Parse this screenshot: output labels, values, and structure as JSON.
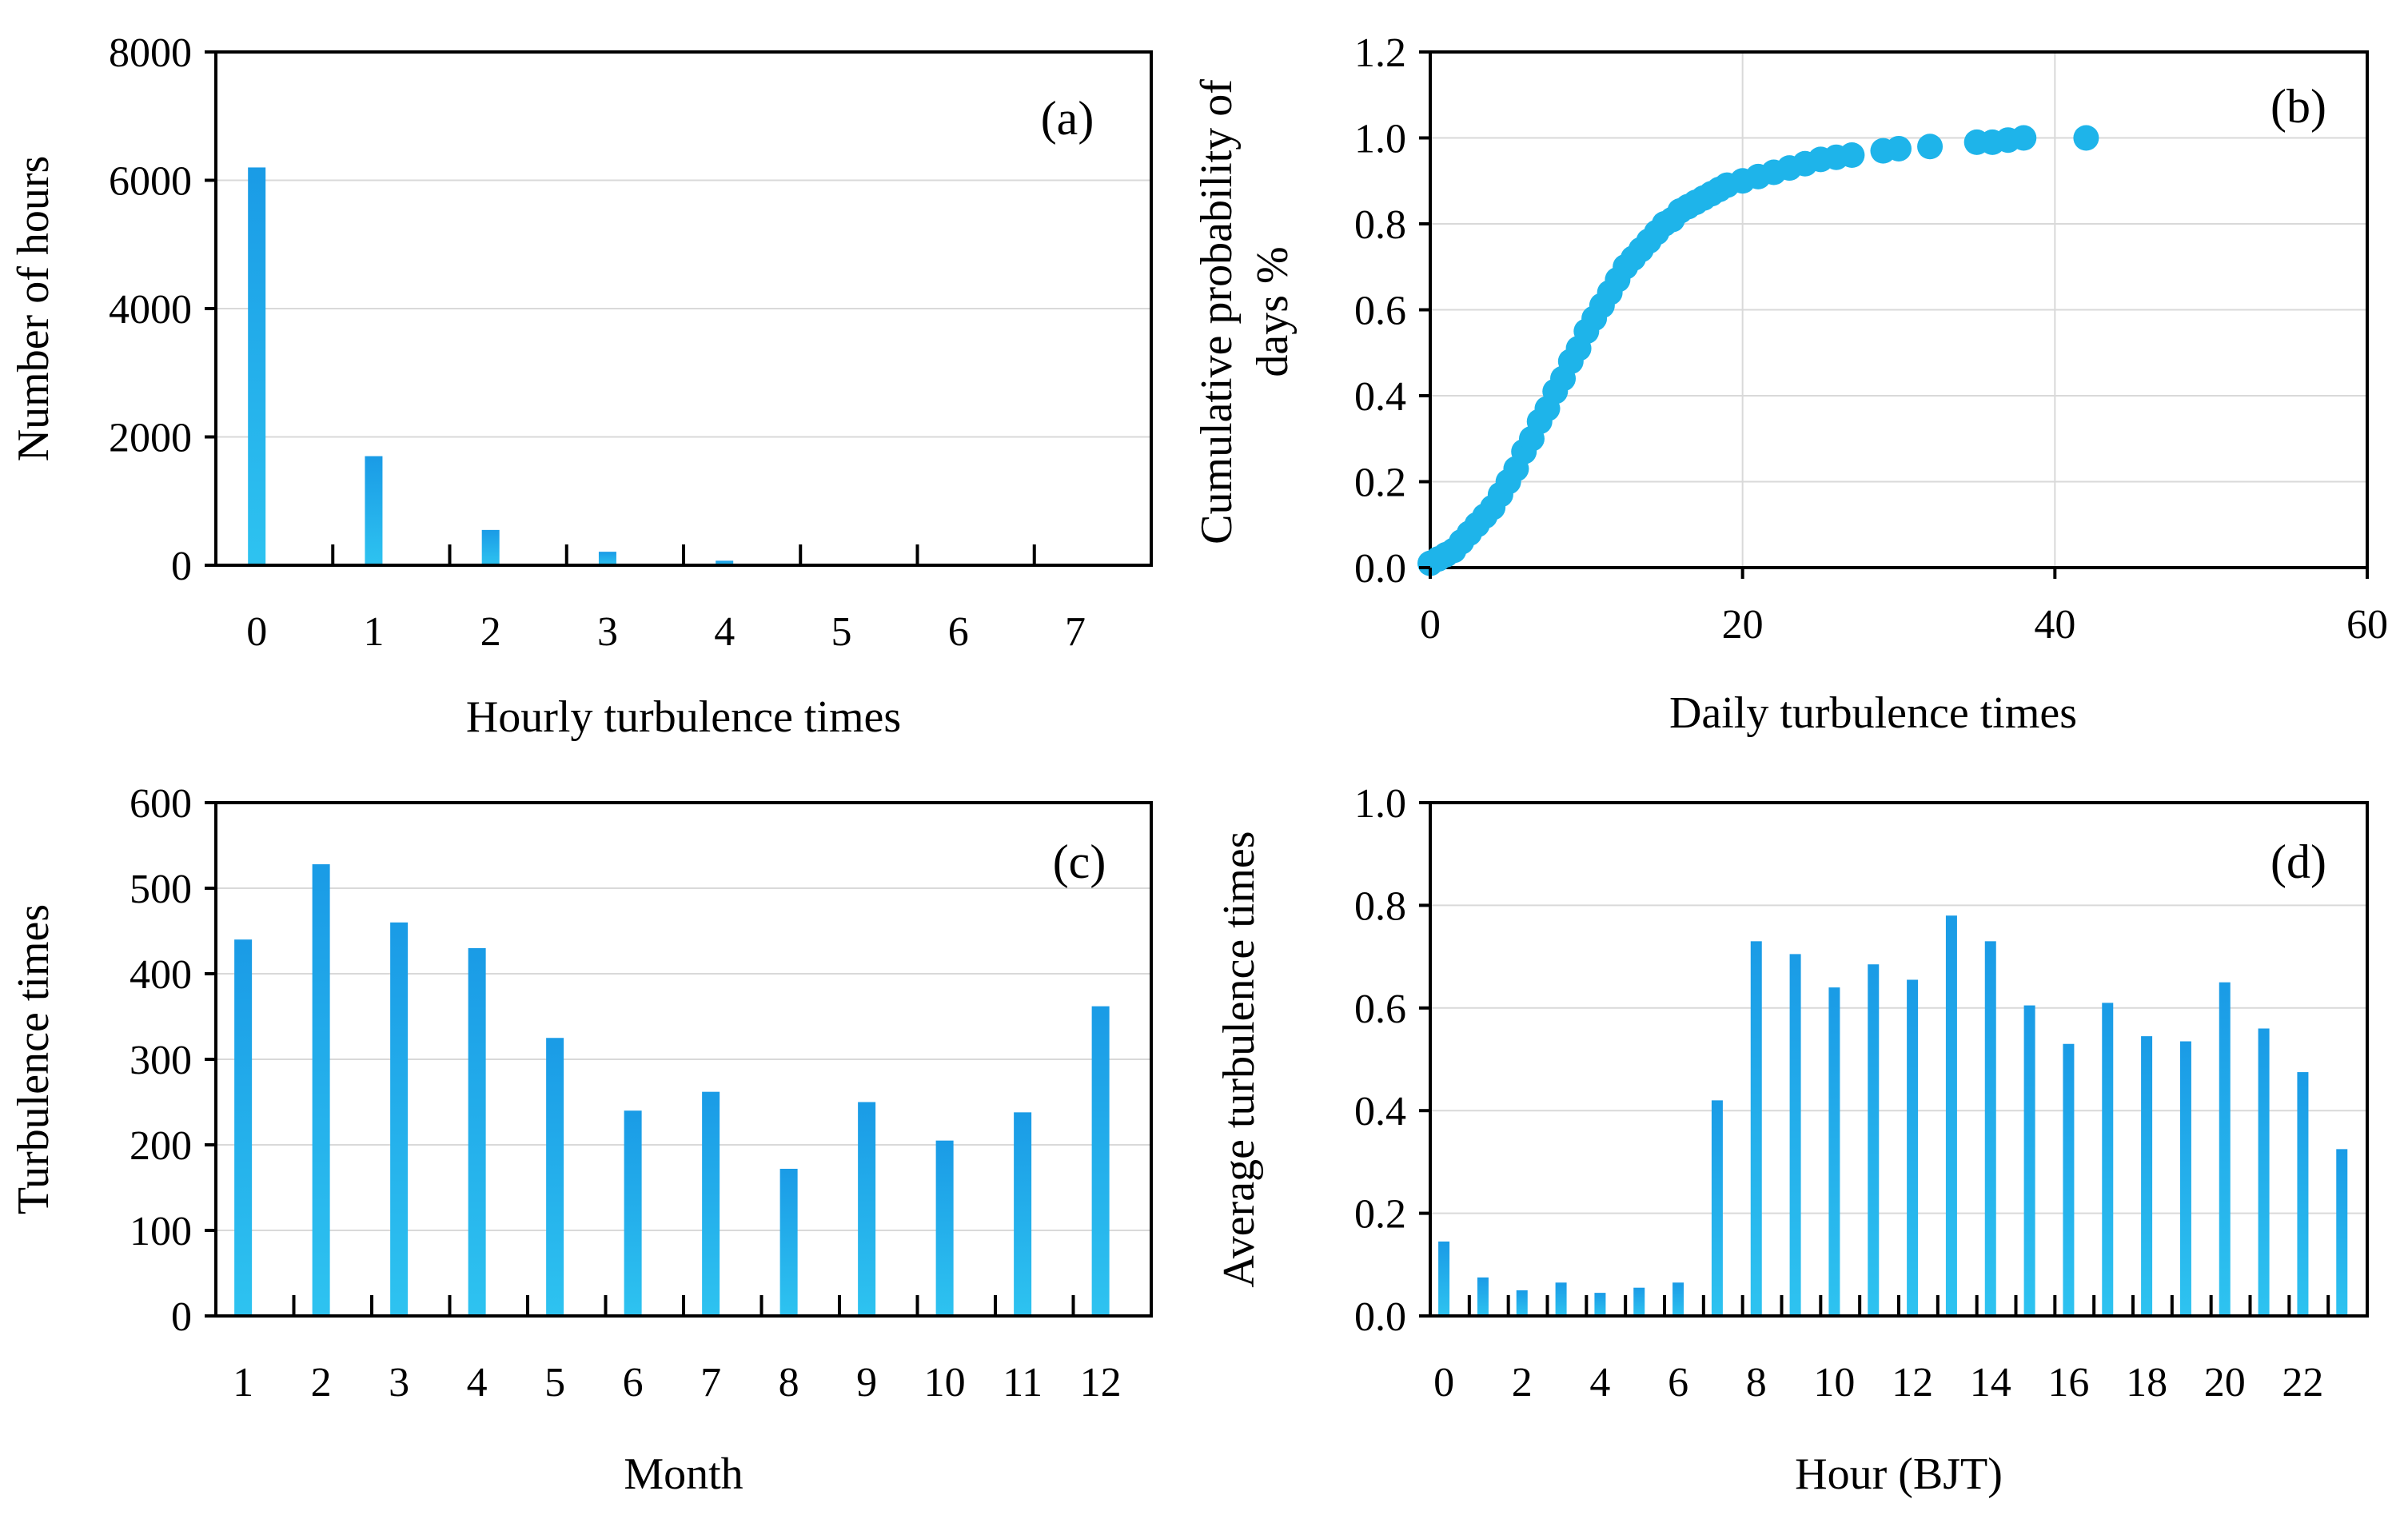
{
  "chart_data": [
    {
      "id": "a",
      "type": "bar",
      "panel_label": "(a)",
      "xlabel": "Hourly turbulence times",
      "ylabel": "Number of hours",
      "categories": [
        "0",
        "1",
        "2",
        "3",
        "4",
        "5",
        "6",
        "7"
      ],
      "values": [
        6200,
        1700,
        550,
        210,
        70,
        15,
        8,
        3
      ],
      "ylim": [
        0,
        8000
      ],
      "yticks": [
        "0",
        "2000",
        "4000",
        "6000",
        "8000"
      ],
      "grid": true,
      "color": "#29ABE2"
    },
    {
      "id": "b",
      "type": "scatter",
      "panel_label": "(b)",
      "xlabel": "Daily turbulence times",
      "ylabel_lines": [
        "Cumulative probability of",
        "days %"
      ],
      "xlim": [
        0,
        60
      ],
      "ylim": [
        0,
        1.2
      ],
      "xticks": [
        "0",
        "20",
        "40",
        "60"
      ],
      "yticks": [
        "0.0",
        "0.2",
        "0.4",
        "0.6",
        "0.8",
        "1.0",
        "1.2"
      ],
      "grid": true,
      "color": "#1EB4EA",
      "points": [
        [
          0,
          0.01
        ],
        [
          0.5,
          0.02
        ],
        [
          1,
          0.03
        ],
        [
          1.5,
          0.04
        ],
        [
          2,
          0.06
        ],
        [
          2.5,
          0.08
        ],
        [
          3,
          0.1
        ],
        [
          3.5,
          0.12
        ],
        [
          4,
          0.14
        ],
        [
          4.5,
          0.17
        ],
        [
          5,
          0.2
        ],
        [
          5.5,
          0.23
        ],
        [
          6,
          0.27
        ],
        [
          6.5,
          0.3
        ],
        [
          7,
          0.34
        ],
        [
          7.5,
          0.37
        ],
        [
          8,
          0.41
        ],
        [
          8.5,
          0.44
        ],
        [
          9,
          0.48
        ],
        [
          9.5,
          0.51
        ],
        [
          10,
          0.55
        ],
        [
          10.5,
          0.58
        ],
        [
          11,
          0.61
        ],
        [
          11.5,
          0.64
        ],
        [
          12,
          0.67
        ],
        [
          12.5,
          0.7
        ],
        [
          13,
          0.72
        ],
        [
          13.5,
          0.74
        ],
        [
          14,
          0.76
        ],
        [
          14.5,
          0.78
        ],
        [
          15,
          0.8
        ],
        [
          15.5,
          0.81
        ],
        [
          16,
          0.83
        ],
        [
          16.5,
          0.84
        ],
        [
          17,
          0.85
        ],
        [
          17.5,
          0.86
        ],
        [
          18,
          0.87
        ],
        [
          18.5,
          0.88
        ],
        [
          19,
          0.89
        ],
        [
          20,
          0.9
        ],
        [
          21,
          0.91
        ],
        [
          22,
          0.92
        ],
        [
          23,
          0.93
        ],
        [
          24,
          0.94
        ],
        [
          25,
          0.95
        ],
        [
          26,
          0.955
        ],
        [
          27,
          0.96
        ],
        [
          29,
          0.97
        ],
        [
          30,
          0.975
        ],
        [
          32,
          0.98
        ],
        [
          35,
          0.99
        ],
        [
          36,
          0.99
        ],
        [
          37,
          0.995
        ],
        [
          38,
          1.0
        ],
        [
          42,
          1.0
        ]
      ]
    },
    {
      "id": "c",
      "type": "bar",
      "panel_label": "(c)",
      "xlabel": "Month",
      "ylabel": "Turbulence times",
      "categories": [
        "1",
        "2",
        "3",
        "4",
        "5",
        "6",
        "7",
        "8",
        "9",
        "10",
        "11",
        "12"
      ],
      "values": [
        440,
        528,
        460,
        430,
        325,
        240,
        262,
        172,
        250,
        205,
        238,
        362
      ],
      "ylim": [
        0,
        600
      ],
      "yticks": [
        "0",
        "100",
        "200",
        "300",
        "400",
        "500",
        "600"
      ],
      "grid": true,
      "color": "#29ABE2"
    },
    {
      "id": "d",
      "type": "bar",
      "panel_label": "(d)",
      "xlabel": "Hour (BJT)",
      "ylabel": "Average turbulence times",
      "categories": [
        "0",
        "1",
        "2",
        "3",
        "4",
        "5",
        "6",
        "7",
        "8",
        "9",
        "10",
        "11",
        "12",
        "13",
        "14",
        "15",
        "16",
        "17",
        "18",
        "19",
        "20",
        "21",
        "22",
        "23"
      ],
      "xtick_labels": [
        "0",
        "2",
        "4",
        "6",
        "8",
        "10",
        "12",
        "14",
        "16",
        "18",
        "20",
        "22"
      ],
      "values": [
        0.145,
        0.075,
        0.05,
        0.065,
        0.045,
        0.055,
        0.065,
        0.42,
        0.73,
        0.705,
        0.64,
        0.685,
        0.655,
        0.78,
        0.73,
        0.605,
        0.53,
        0.61,
        0.545,
        0.535,
        0.65,
        0.56,
        0.475,
        0.325
      ],
      "ylim": [
        0,
        1.0
      ],
      "yticks": [
        "0.0",
        "0.2",
        "0.4",
        "0.6",
        "0.8",
        "1.0"
      ],
      "grid": true,
      "color": "#29ABE2"
    }
  ]
}
